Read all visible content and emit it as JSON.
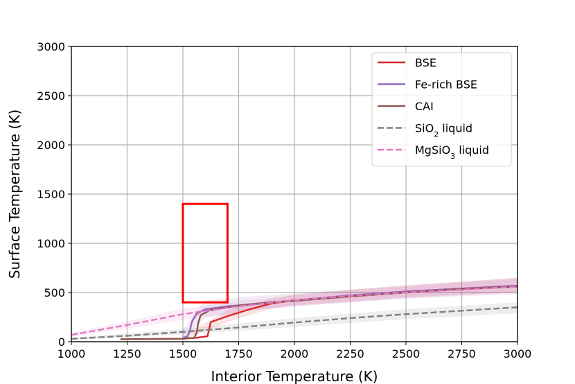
{
  "chart_data": {
    "type": "line",
    "title": "",
    "xlabel": "Interior Temperature (K)",
    "ylabel": "Surface Temperature (K)",
    "xlim": [
      1000,
      3000
    ],
    "ylim": [
      0,
      3000
    ],
    "xticks": [
      1000,
      1250,
      1500,
      1750,
      2000,
      2250,
      2500,
      2750,
      3000
    ],
    "yticks": [
      0,
      500,
      1000,
      1500,
      2000,
      2500,
      3000
    ],
    "grid": true,
    "legend_position": "upper-right",
    "series": [
      {
        "name": "BSE",
        "color": "#d62728",
        "style": "solid",
        "x": [
          1220,
          1500,
          1560,
          1610,
          1615,
          1625,
          1700,
          1800,
          1900,
          2000,
          2250,
          2500,
          2750,
          3000
        ],
        "y": [
          25,
          30,
          40,
          55,
          100,
          200,
          260,
          330,
          390,
          420,
          470,
          510,
          540,
          570
        ],
        "band_x": [
          1500,
          1700,
          1900,
          2000,
          2250,
          2500,
          2750,
          3000
        ],
        "band_upper": [
          60,
          320,
          440,
          480,
          530,
          570,
          610,
          650
        ],
        "band_lower": [
          20,
          200,
          340,
          370,
          410,
          450,
          480,
          500
        ]
      },
      {
        "name": "Fe-rich BSE",
        "color": "#9467bd",
        "style": "solid",
        "x": [
          1500,
          1520,
          1530,
          1540,
          1560,
          1600,
          1700,
          1800,
          1900,
          2000,
          2250,
          2500,
          2750,
          3000
        ],
        "y": [
          40,
          50,
          100,
          200,
          280,
          330,
          360,
          380,
          400,
          420,
          470,
          510,
          540,
          570
        ],
        "band_x": [
          1500,
          1600,
          1800,
          2000,
          2250,
          2500,
          2750,
          3000
        ],
        "band_upper": [
          120,
          420,
          460,
          490,
          530,
          575,
          610,
          650
        ],
        "band_lower": [
          20,
          240,
          320,
          360,
          400,
          440,
          470,
          500
        ]
      },
      {
        "name": "CAI",
        "color": "#8c564b",
        "style": "solid",
        "x": [
          1220,
          1500,
          1550,
          1560,
          1570,
          1580,
          1620,
          1700,
          1800,
          1900,
          2000,
          2250,
          2500,
          2750,
          3000
        ],
        "y": [
          25,
          30,
          40,
          80,
          200,
          270,
          320,
          350,
          380,
          400,
          415,
          460,
          500,
          535,
          560
        ]
      },
      {
        "name": "SiO$_2$ liquid",
        "color": "#7f7f7f",
        "style": "dashed",
        "x": [
          1000,
          1250,
          1500,
          1750,
          2000,
          2250,
          2500,
          2750,
          3000
        ],
        "y": [
          30,
          60,
          100,
          145,
          195,
          240,
          280,
          315,
          350
        ],
        "band_x": [
          1000,
          1500,
          2000,
          2500,
          3000
        ],
        "band_upper": [
          40,
          130,
          240,
          330,
          400
        ],
        "band_lower": [
          20,
          75,
          150,
          230,
          290
        ]
      },
      {
        "name": "MgSiO$_3$ liquid",
        "color": "#e377c2",
        "style": "dashed",
        "x": [
          1000,
          1250,
          1500,
          1750,
          2000,
          2250,
          2500,
          2750,
          3000
        ],
        "y": [
          70,
          170,
          280,
          360,
          420,
          465,
          500,
          530,
          560
        ],
        "band_x": [
          1000,
          1250,
          1500,
          1750,
          2000,
          2250,
          2500,
          2750,
          3000
        ],
        "band_upper": [
          90,
          210,
          340,
          410,
          470,
          520,
          560,
          600,
          640
        ],
        "band_lower": [
          50,
          130,
          220,
          300,
          360,
          400,
          440,
          460,
          480
        ]
      }
    ],
    "annotations": [
      {
        "type": "rectangle",
        "color": "#ff0000",
        "x": [
          1500,
          1700
        ],
        "y": [
          400,
          1400
        ]
      }
    ]
  }
}
